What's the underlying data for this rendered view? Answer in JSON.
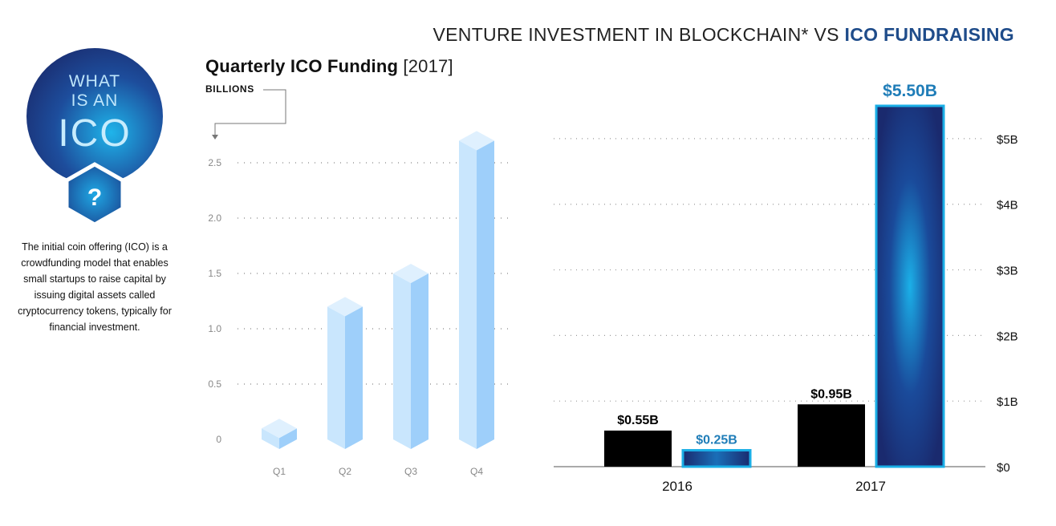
{
  "badge": {
    "line1": "WHAT",
    "line2": "IS AN",
    "line3": "ICO",
    "question_mark": "?"
  },
  "description": "The initial coin offering (ICO) is a crowdfunding model that enables small startups to raise capital by issuing digital assets called cryptocurrency tokens, typically for financial investment.",
  "colors": {
    "navy": "#1a2d6e",
    "cyan": "#1aaee6",
    "light_bar": "#9ecffa",
    "black_bar": "#000000",
    "accent_text": "#1f7db8"
  },
  "chart_data": [
    {
      "type": "bar",
      "title": "Quarterly ICO Funding",
      "title_suffix": "[2017]",
      "ylabel": "BILLIONS",
      "categories": [
        "Q1",
        "Q2",
        "Q3",
        "Q4"
      ],
      "values": [
        0.1,
        1.2,
        1.5,
        2.7
      ],
      "ylim": [
        0,
        2.8
      ],
      "yticks": [
        0,
        0.5,
        1.0,
        1.5,
        2.0,
        2.5
      ],
      "ytick_labels": [
        "0",
        "0.5",
        "1.0",
        "1.5",
        "2.0",
        "2.5"
      ],
      "grid": true
    },
    {
      "type": "bar",
      "title": "VENTURE INVESTMENT IN BLOCKCHAIN*",
      "title_vs": "VS",
      "title_highlight": "ICO FUNDRAISING",
      "categories": [
        "2016",
        "2017"
      ],
      "series": [
        {
          "values": [
            0.55,
            0.95
          ],
          "labels": [
            "$0.55B",
            "$0.95B"
          ],
          "color": "#000000"
        },
        {
          "values": [
            0.25,
            5.5
          ],
          "labels": [
            "$0.25B",
            "$5.50B"
          ],
          "color": "#1a2d6e"
        }
      ],
      "ylim": [
        0,
        5.5
      ],
      "yticks": [
        0,
        1,
        2,
        3,
        4,
        5
      ],
      "ytick_labels": [
        "$0",
        "$1B",
        "$2B",
        "$3B",
        "$4B",
        "$5B"
      ],
      "grid": true
    }
  ]
}
